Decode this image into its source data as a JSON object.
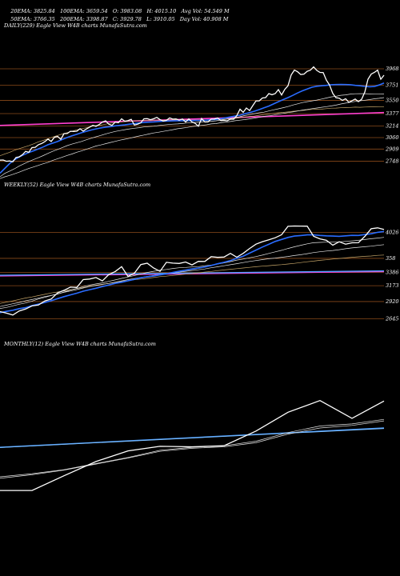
{
  "header": {
    "line1": [
      "20EMA: 3825.84",
      "100EMA: 3659.54",
      "O: 3983.08",
      "H: 4015.10",
      "Avg Vol: 54.549 M"
    ],
    "line2": [
      "50EMA: 3766.35",
      "200EMA: 3398.87",
      "C: 3929.78",
      "L: 3910.05",
      "Day Vol: 40.908 M"
    ]
  },
  "chart_data": [
    {
      "type": "line",
      "panel_label": "DAILY(229) Eagle  View  W4B charts MunafaSutra.com",
      "price_levels": [
        3968,
        3751,
        3550,
        3377,
        3214,
        3060,
        2909,
        2748
      ],
      "ylim": [
        2680,
        4010
      ],
      "price_x": [
        0,
        4,
        8,
        12,
        16,
        20,
        24,
        28,
        32,
        36,
        40,
        44,
        48,
        52,
        56,
        60,
        64,
        68,
        72,
        76,
        80,
        84,
        88,
        92,
        96,
        100,
        104,
        108,
        112,
        116,
        120,
        124,
        128,
        132,
        136,
        140,
        144,
        148,
        152,
        156,
        160,
        164,
        168,
        172,
        176,
        180,
        184,
        188,
        192,
        196,
        200,
        204,
        208,
        212,
        216,
        220,
        224,
        228,
        232,
        236,
        240,
        244,
        248,
        252,
        256,
        260,
        264,
        268,
        272,
        276,
        280,
        284,
        288,
        292,
        296,
        300,
        304,
        308,
        312,
        316,
        320,
        324,
        328,
        332,
        336,
        340,
        344,
        348,
        352,
        356,
        360,
        364,
        368,
        372,
        376,
        380,
        384,
        388,
        392,
        396,
        400,
        404,
        408,
        412,
        416,
        420,
        424,
        428,
        432,
        436,
        440,
        444,
        448,
        452,
        456,
        460,
        464,
        468,
        472,
        476,
        480
      ],
      "price": [
        2762,
        2764,
        2748,
        2752,
        2740,
        2798,
        2806,
        2834,
        2878,
        2866,
        2928,
        2932,
        2966,
        2982,
        3006,
        3041,
        3009,
        3064,
        3076,
        3038,
        3113,
        3114,
        3143,
        3141,
        3144,
        3177,
        3146,
        3174,
        3198,
        3222,
        3209,
        3233,
        3265,
        3282,
        3237,
        3222,
        3264,
        3256,
        3308,
        3275,
        3285,
        3301,
        3226,
        3237,
        3255,
        3308,
        3310,
        3296,
        3308,
        3327,
        3298,
        3278,
        3287,
        3320,
        3304,
        3306,
        3290,
        3306,
        3266,
        3306,
        3266,
        3248,
        3210,
        3312,
        3266,
        3268,
        3304,
        3305,
        3319,
        3284,
        3287,
        3282,
        3304,
        3302,
        3350,
        3435,
        3394,
        3451,
        3417,
        3482,
        3544,
        3545,
        3583,
        3588,
        3641,
        3626,
        3641,
        3693,
        3623,
        3697,
        3744,
        3888,
        3951,
        3929,
        3892,
        3898,
        3935,
        3950,
        3993,
        3947,
        3920,
        3918,
        3818,
        3752,
        3643,
        3586,
        3580,
        3551,
        3573,
        3525,
        3547,
        3569,
        3535,
        3566,
        3660,
        3831,
        3898,
        3920,
        3950,
        3830,
        3883
      ],
      "ema20": [
        2590,
        2654,
        2717,
        2767,
        2805,
        2835,
        2864,
        2886,
        2911,
        2937,
        2966,
        2987,
        3008,
        3036,
        3061,
        3084,
        3103,
        3124,
        3143,
        3160,
        3175,
        3188,
        3198,
        3205,
        3215,
        3222,
        3228,
        3237,
        3245,
        3253,
        3260,
        3264,
        3267,
        3272,
        3277,
        3279,
        3281,
        3283,
        3283,
        3283,
        3285,
        3287,
        3287,
        3290,
        3296,
        3300,
        3309,
        3321,
        3332,
        3345,
        3356,
        3375,
        3389,
        3408,
        3429,
        3454,
        3476,
        3504,
        3534,
        3561,
        3588,
        3617,
        3649,
        3677,
        3701,
        3725,
        3738,
        3744,
        3749,
        3758,
        3760,
        3761,
        3760,
        3758,
        3749,
        3744,
        3736,
        3731,
        3735,
        3755,
        3781
      ],
      "ema50": [
        2543,
        2588,
        2618,
        2648,
        2684,
        2715,
        2744,
        2771,
        2795,
        2823,
        2852,
        2880,
        2904,
        2929,
        2954,
        2974,
        2992,
        3009,
        3031,
        3052,
        3071,
        3089,
        3109,
        3125,
        3141,
        3153,
        3164,
        3175,
        3184,
        3191,
        3200,
        3206,
        3210,
        3218,
        3226,
        3232,
        3237,
        3241,
        3246,
        3253,
        3257,
        3262,
        3267,
        3271,
        3275,
        3282,
        3291,
        3301,
        3311,
        3323,
        3336,
        3351,
        3363,
        3376,
        3387,
        3396,
        3411,
        3426,
        3440,
        3455,
        3470,
        3490,
        3505,
        3522,
        3534,
        3544,
        3555,
        3569,
        3582,
        3597,
        3605,
        3618,
        3624,
        3634,
        3638,
        3640,
        3639,
        3636,
        3633,
        3633,
        3636
      ],
      "ema100": [
        2520,
        2543,
        2561,
        2582,
        2604,
        2629,
        2653,
        2673,
        2694,
        2715,
        2734,
        2760,
        2781,
        2802,
        2825,
        2844,
        2867,
        2885,
        2906,
        2927,
        2949,
        2963,
        2980,
        2996,
        3010,
        3026,
        3039,
        3052,
        3066,
        3081,
        3094,
        3108,
        3121,
        3131,
        3142,
        3153,
        3164,
        3177,
        3186,
        3194,
        3206,
        3213,
        3221,
        3229,
        3240,
        3245,
        3256,
        3265,
        3272,
        3283,
        3290,
        3298,
        3307,
        3318,
        3327,
        3340,
        3348,
        3358,
        3369,
        3380,
        3390,
        3399,
        3410,
        3423,
        3431,
        3442,
        3451,
        3460,
        3468,
        3478,
        3489,
        3503,
        3515,
        3527,
        3537,
        3546,
        3553,
        3561,
        3572,
        3578,
        3588
      ],
      "ema200": [
        2820,
        2845,
        2866,
        2893,
        2914,
        2934,
        2953,
        2978,
        3004,
        3023,
        3045,
        3068,
        3088,
        3108,
        3124,
        3145,
        3162,
        3178,
        3190,
        3206,
        3219,
        3225,
        3237,
        3250,
        3258,
        3264,
        3269,
        3279,
        3281,
        3285,
        3285,
        3287,
        3291,
        3290,
        3290,
        3292,
        3292,
        3295,
        3294,
        3294,
        3292,
        3292,
        3295,
        3295,
        3296,
        3300,
        3301,
        3304,
        3312,
        3314,
        3323,
        3330,
        3340,
        3344,
        3355,
        3364,
        3370,
        3380,
        3388,
        3392,
        3400,
        3407,
        3414,
        3417,
        3426,
        3432,
        3435,
        3436,
        3442,
        3448,
        3450,
        3454,
        3457,
        3458,
        3462,
        3460,
        3463,
        3465,
        3467,
        3468,
        3468
      ],
      "pink": [
        3220,
        3390
      ]
    },
    {
      "type": "line",
      "panel_label": "WEEKLY(52) Eagle  View  W4B charts MunafaSutra.com",
      "price_levels": [
        4026,
        358,
        3386,
        3173,
        2920,
        2645
      ],
      "ylim": [
        2600,
        4120
      ],
      "price_x": [
        0,
        8,
        16,
        24,
        32,
        40,
        48,
        56,
        64,
        72,
        80,
        88,
        96,
        104,
        112,
        120,
        128,
        136,
        144,
        152,
        160,
        168,
        176,
        184,
        192,
        200,
        208,
        216,
        224,
        232,
        240,
        248,
        256,
        264,
        272,
        280,
        288,
        296,
        304,
        312,
        320,
        328,
        336,
        344,
        352,
        360,
        368,
        376,
        384,
        392,
        400,
        408,
        416,
        424,
        432,
        440,
        448,
        456,
        464,
        472,
        480
      ],
      "price": [
        2760,
        2735,
        2705,
        2770,
        2800,
        2850,
        2865,
        2930,
        2960,
        3060,
        3100,
        3150,
        3145,
        3270,
        3280,
        3304,
        3250,
        3351,
        3400,
        3478,
        3322,
        3373,
        3511,
        3532,
        3456,
        3402,
        3546,
        3534,
        3528,
        3552,
        3506,
        3562,
        3561,
        3637,
        3626,
        3631,
        3689,
        3628,
        3690,
        3767,
        3836,
        3876,
        3906,
        3939,
        3987,
        4121,
        4126,
        4125,
        4124,
        3963,
        3921,
        3898,
        3820,
        3875,
        3836,
        3858,
        3860,
        3960,
        4083,
        4097,
        4070
      ],
      "ema20": [
        2743,
        2763,
        2782,
        2807,
        2822,
        2856,
        2880,
        2905,
        2935,
        2966,
        2998,
        3027,
        3054,
        3085,
        3110,
        3133,
        3159,
        3184,
        3211,
        3228,
        3251,
        3274,
        3300,
        3316,
        3329,
        3346,
        3363,
        3386,
        3404,
        3421,
        3440,
        3454,
        3473,
        3495,
        3523,
        3546,
        3575,
        3610,
        3645,
        3693,
        3742,
        3791,
        3834,
        3880,
        3912,
        3944,
        3966,
        3975,
        3985,
        3985,
        3976,
        3969,
        3965,
        3962,
        3969,
        3977,
        3976,
        3990,
        4003,
        4025,
        4040
      ],
      "ema50": [
        2810,
        2826,
        2852,
        2877,
        2897,
        2927,
        2962,
        2987,
        3017,
        3039,
        3072,
        3103,
        3131,
        3159,
        3183,
        3201,
        3218,
        3243,
        3265,
        3290,
        3313,
        3336,
        3361,
        3384,
        3404,
        3421,
        3433,
        3448,
        3460,
        3465,
        3473,
        3478,
        3491,
        3503,
        3520,
        3536,
        3558,
        3582,
        3599,
        3619,
        3638,
        3662,
        3688,
        3714,
        3738,
        3768,
        3794,
        3818,
        3842,
        3860,
        3865,
        3868,
        3869,
        3874,
        3881,
        3889,
        3898,
        3910,
        3923,
        3934,
        3945
      ],
      "ema100": [
        2840,
        2862,
        2885,
        2905,
        2932,
        2953,
        2974,
        3000,
        3018,
        3043,
        3067,
        3088,
        3111,
        3136,
        3159,
        3176,
        3194,
        3210,
        3230,
        3250,
        3271,
        3287,
        3305,
        3320,
        3337,
        3352,
        3367,
        3378,
        3391,
        3404,
        3417,
        3428,
        3441,
        3460,
        3475,
        3492,
        3508,
        3525,
        3543,
        3560,
        3574,
        3590,
        3604,
        3614,
        3627,
        3640,
        3655,
        3668,
        3684,
        3702,
        3715,
        3726,
        3735,
        3748,
        3763,
        3776,
        3786,
        3795,
        3805,
        3817,
        3829
      ],
      "ema200": [
        2890,
        2910,
        2931,
        2954,
        2977,
        2994,
        3015,
        3036,
        3057,
        3073,
        3091,
        3110,
        3127,
        3146,
        3164,
        3181,
        3197,
        3209,
        3224,
        3240,
        3255,
        3268,
        3279,
        3291,
        3304,
        3318,
        3326,
        3337,
        3347,
        3358,
        3366,
        3378,
        3391,
        3401,
        3414,
        3425,
        3436,
        3445,
        3456,
        3466,
        3476,
        3485,
        3493,
        3502,
        3510,
        3520,
        3530,
        3543,
        3555,
        3566,
        3578,
        3587,
        3599,
        3608,
        3617,
        3627,
        3634,
        3642,
        3648,
        3657,
        3663
      ],
      "pink": [
        3330,
        3400
      ],
      "blue": [
        3340,
        3410
      ]
    },
    {
      "type": "line",
      "panel_label": "MONTHLY(12) Eagle  View  W4B charts MunafaSutra.com",
      "ylim": [
        2300,
        4300
      ],
      "price_x": [
        0,
        40,
        80,
        120,
        160,
        200,
        240,
        280,
        320,
        360,
        400,
        440,
        480
      ],
      "price": [
        2330,
        2330,
        2620,
        2900,
        3110,
        3200,
        3190,
        3210,
        3500,
        3870,
        4100,
        3750,
        4090
      ],
      "ema20": [
        2600,
        2660,
        2740,
        2860,
        2980,
        3120,
        3180,
        3210,
        3300,
        3470,
        3600,
        3640,
        3730
      ],
      "ema50": [
        2570,
        2640,
        2730,
        2850,
        2970,
        3100,
        3160,
        3190,
        3270,
        3440,
        3560,
        3610,
        3700
      ],
      "blue": [
        3180,
        3560
      ],
      "blue2": [
        3175,
        3550
      ]
    }
  ]
}
